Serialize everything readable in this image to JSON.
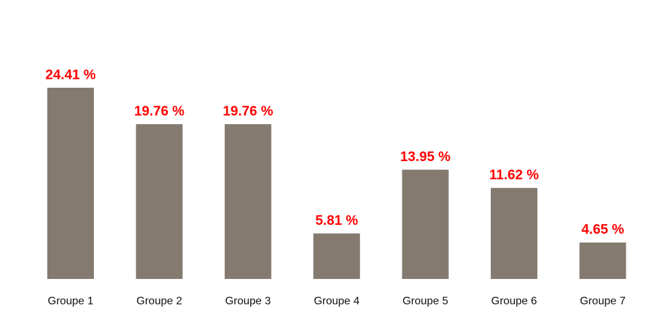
{
  "chart_data": {
    "type": "bar",
    "categories": [
      "Groupe 1",
      "Groupe 2",
      "Groupe 3",
      "Groupe 4",
      "Groupe 5",
      "Groupe 6",
      "Groupe 7"
    ],
    "values": [
      24.41,
      19.76,
      19.76,
      5.81,
      13.95,
      11.62,
      4.65
    ],
    "value_labels": [
      "24.41 %",
      "19.76 %",
      "19.76 %",
      "5.81 %",
      "13.95 %",
      "11.62 %",
      "4.65 %"
    ],
    "color": "#857a70"
  }
}
